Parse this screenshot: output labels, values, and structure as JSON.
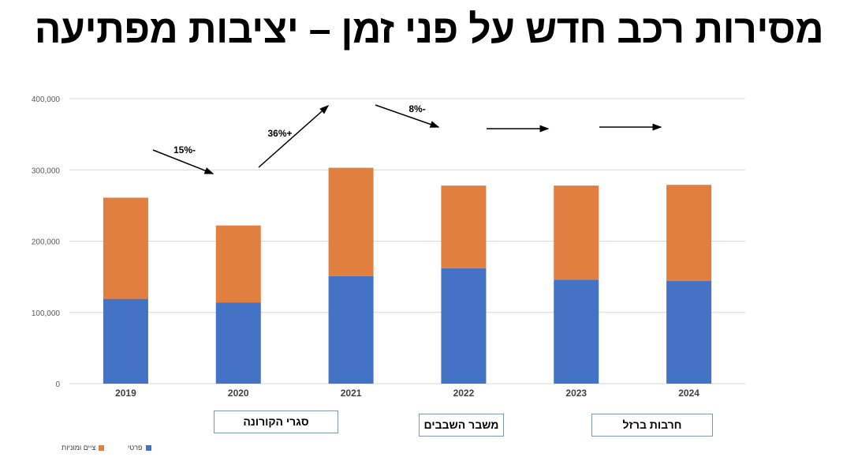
{
  "title": "מסירות רכב חדש על פני זמן – יציבות מפתיעה",
  "chart_data": {
    "type": "bar",
    "stacked": true,
    "categories": [
      "2019",
      "2020",
      "2021",
      "2022",
      "2023",
      "2024"
    ],
    "series": [
      {
        "name": "פרטי",
        "color": "#4472c4",
        "values": [
          119000,
          114000,
          151000,
          162000,
          146000,
          144000
        ]
      },
      {
        "name": "ציים ומוניות",
        "color": "#e07f3f",
        "values": [
          142000,
          108000,
          152000,
          116000,
          132000,
          135000
        ]
      }
    ],
    "ylim": [
      0,
      400000
    ],
    "yticks": [
      "0",
      "100,000",
      "200,000",
      "300,000",
      "400,000"
    ],
    "grid": true,
    "legend": "bottom-left",
    "annotations": [
      "15%-",
      "36%+",
      "8%-"
    ],
    "events": [
      "סגרי הקורונה",
      "משבר השבבים",
      "חרבות ברזל"
    ]
  }
}
